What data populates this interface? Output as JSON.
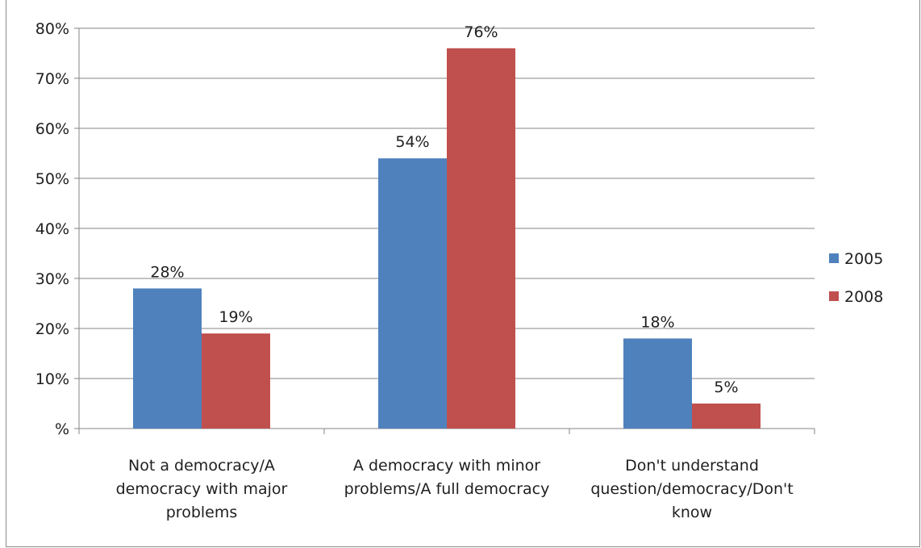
{
  "chart_data": {
    "type": "bar",
    "title": "",
    "xlabel": "",
    "ylabel": "",
    "categories": [
      [
        "Not a democracy/A",
        "democracy with major",
        "problems"
      ],
      [
        "A democracy with minor",
        "problems/A full democracy"
      ],
      [
        "Don't understand",
        "question/democracy/Don't",
        "know"
      ]
    ],
    "series": [
      {
        "name": "2005",
        "color": "#4f81bd",
        "values": [
          28,
          54,
          18
        ],
        "labels": [
          "28%",
          "54%",
          "18%"
        ]
      },
      {
        "name": "2008",
        "color": "#c0504d",
        "values": [
          19,
          76,
          5
        ],
        "labels": [
          "19%",
          "76%",
          "5%"
        ]
      }
    ],
    "ylim": [
      0,
      80
    ],
    "yticks": [
      0,
      10,
      20,
      30,
      40,
      50,
      60,
      70,
      80
    ],
    "ytick_labels": [
      "%",
      "10%",
      "20%",
      "30%",
      "40%",
      "50%",
      "60%",
      "70%",
      "80%"
    ],
    "grid": true,
    "legend_position": "right"
  }
}
